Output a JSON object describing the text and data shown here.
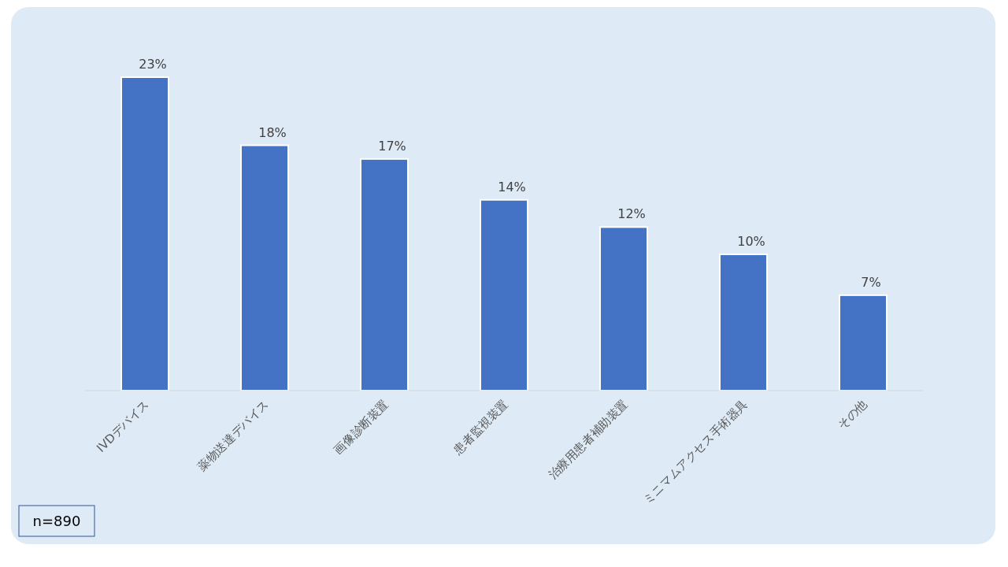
{
  "chart_data": {
    "type": "bar",
    "categories": [
      "IVDデバイス",
      "薬物送達デバイス",
      "画像診断装置",
      "患者監視装置",
      "治療用患者補助装置",
      "ミニマムアクセス手術器具",
      "その他"
    ],
    "values": [
      23,
      18,
      17,
      14,
      12,
      10,
      7
    ],
    "value_labels": [
      "23%",
      "18%",
      "17%",
      "14%",
      "12%",
      "10%",
      "7%"
    ],
    "color": "#4472c4",
    "annotations": [
      "n=890"
    ]
  }
}
